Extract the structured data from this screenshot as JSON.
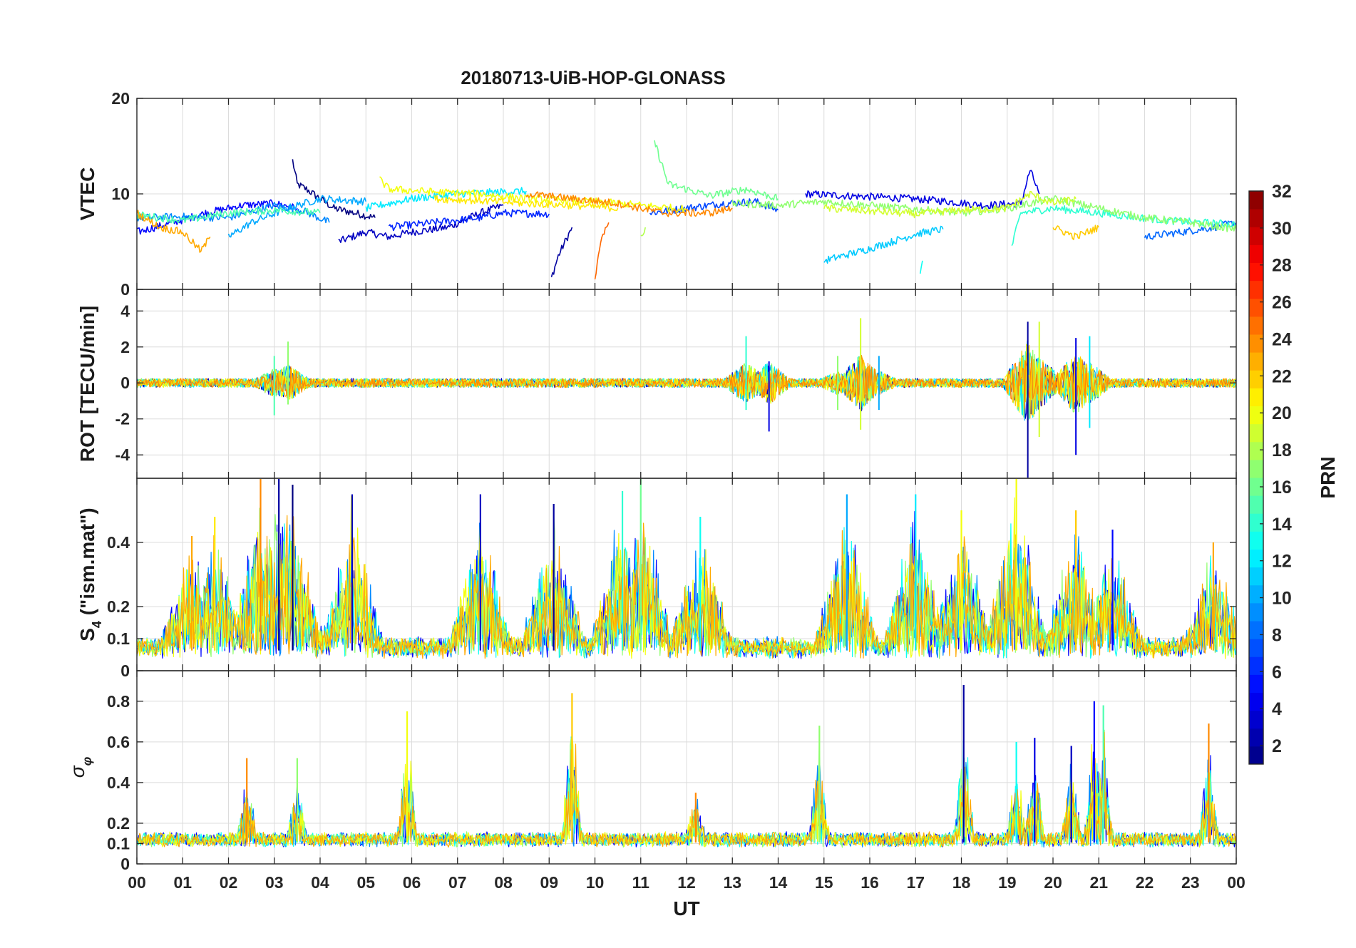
{
  "chart_data": {
    "type": "line",
    "title": "20180713-UiB-HOP-GLONASS",
    "xlabel": "UT",
    "xlim": [
      0,
      24
    ],
    "x_ticks": [
      0,
      1,
      2,
      3,
      4,
      5,
      6,
      7,
      8,
      9,
      10,
      11,
      12,
      13,
      14,
      15,
      16,
      17,
      18,
      19,
      20,
      21,
      22,
      23,
      24
    ],
    "x_tick_labels": [
      "00",
      "01",
      "02",
      "03",
      "04",
      "05",
      "06",
      "07",
      "08",
      "09",
      "10",
      "11",
      "12",
      "13",
      "14",
      "15",
      "16",
      "17",
      "18",
      "19",
      "20",
      "21",
      "22",
      "23",
      "00"
    ],
    "panels": [
      {
        "id": "vtec",
        "ylabel": "VTEC",
        "ylim": [
          0,
          20
        ],
        "yticks": [
          0,
          10,
          20
        ],
        "ytick_labels": [
          "0",
          "10",
          "20"
        ],
        "series": [
          {
            "prn": 1,
            "points": [
              [
                3.4,
                13.5
              ],
              [
                3.5,
                11
              ],
              [
                3.7,
                10.5
              ],
              [
                4.0,
                9.5
              ],
              [
                4.3,
                8.5
              ],
              [
                5.2,
                7.5
              ]
            ]
          },
          {
            "prn": 2,
            "points": [
              [
                9.05,
                1.2
              ],
              [
                9.2,
                3.5
              ],
              [
                9.5,
                6.5
              ]
            ]
          },
          {
            "prn": 3,
            "points": [
              [
                4.4,
                5.0
              ],
              [
                5.0,
                6.0
              ],
              [
                5.5,
                5.5
              ],
              [
                6.0,
                6.0
              ],
              [
                6.8,
                6.5
              ],
              [
                7.5,
                8.0
              ],
              [
                8.0,
                8.8
              ]
            ]
          },
          {
            "prn": 4,
            "points": [
              [
                14.6,
                10.0
              ],
              [
                15.5,
                9.8
              ],
              [
                16.5,
                9.6
              ],
              [
                17.5,
                9.3
              ],
              [
                18.5,
                8.8
              ],
              [
                19.3,
                9.0
              ],
              [
                19.5,
                12.5
              ],
              [
                19.7,
                10.0
              ]
            ]
          },
          {
            "prn": 5,
            "points": [
              [
                0,
                6.0
              ],
              [
                0.8,
                7.0
              ],
              [
                1.5,
                8.0
              ],
              [
                2.3,
                8.8
              ],
              [
                3.0,
                9.0
              ],
              [
                3.5,
                8.5
              ]
            ]
          },
          {
            "prn": 6,
            "points": [
              [
                5.5,
                6.5
              ],
              [
                6.5,
                7.0
              ],
              [
                7.5,
                7.5
              ],
              [
                8.0,
                8.0
              ],
              [
                9.0,
                7.9
              ]
            ]
          },
          {
            "prn": 7,
            "points": [
              [
                11.2,
                8.0
              ],
              [
                12.0,
                8.5
              ],
              [
                12.8,
                9.0
              ],
              [
                13.5,
                9.2
              ],
              [
                14.0,
                8.3
              ]
            ]
          },
          {
            "prn": 8,
            "points": [
              [
                22.0,
                5.5
              ],
              [
                22.8,
                6.0
              ],
              [
                23.5,
                6.5
              ],
              [
                24,
                7.0
              ]
            ]
          },
          {
            "prn": 9,
            "points": [
              [
                0,
                7.5
              ],
              [
                1.0,
                7.6
              ],
              [
                2.0,
                7.5
              ],
              [
                3.0,
                8.8
              ],
              [
                3.6,
                8.3
              ],
              [
                4.2,
                7.0
              ]
            ]
          },
          {
            "prn": 10,
            "points": [
              [
                2.0,
                5.5
              ],
              [
                2.5,
                7.0
              ],
              [
                3.3,
                8.5
              ],
              [
                4.0,
                9.5
              ],
              [
                5.0,
                9.2
              ]
            ]
          },
          {
            "prn": 11,
            "points": [
              [
                15.0,
                3.0
              ],
              [
                15.8,
                4.0
              ],
              [
                16.5,
                5.0
              ],
              [
                17.0,
                5.8
              ],
              [
                17.6,
                6.3
              ]
            ]
          },
          {
            "prn": 12,
            "points": [
              [
                5.0,
                8.5
              ],
              [
                6.0,
                9.5
              ],
              [
                7.0,
                10.0
              ],
              [
                8.5,
                10.3
              ]
            ]
          },
          {
            "prn": 13,
            "points": [
              [
                17.1,
                1.5
              ],
              [
                17.15,
                3.0
              ]
            ]
          },
          {
            "prn": 14,
            "points": [
              [
                19.1,
                4.5
              ],
              [
                19.3,
                8.0
              ],
              [
                20.0,
                8.5
              ],
              [
                21.0,
                8.0
              ],
              [
                22.5,
                7.2
              ],
              [
                24,
                6.8
              ]
            ]
          },
          {
            "prn": 15,
            "points": [
              [
                0,
                7.8
              ],
              [
                1.0,
                7.2
              ],
              [
                2.0,
                8.0
              ],
              [
                3.0,
                8.3
              ],
              [
                4.0,
                8.0
              ]
            ]
          },
          {
            "prn": 16,
            "points": [
              [
                11.3,
                15.5
              ],
              [
                11.6,
                11.0
              ],
              [
                12.0,
                10.5
              ],
              [
                12.5,
                9.8
              ],
              [
                13.3,
                10.5
              ],
              [
                14.0,
                9.5
              ]
            ]
          },
          {
            "prn": 17,
            "points": [
              [
                13.0,
                9.0
              ],
              [
                14.0,
                8.8
              ],
              [
                15.0,
                9.2
              ],
              [
                16.0,
                8.8
              ],
              [
                17.0,
                8.4
              ],
              [
                18.0,
                8.0
              ],
              [
                19.0,
                8.5
              ],
              [
                20.0,
                9.5
              ],
              [
                21.0,
                8.5
              ],
              [
                22.0,
                7.5
              ],
              [
                23.0,
                7.0
              ],
              [
                24,
                6.3
              ]
            ]
          },
          {
            "prn": 18,
            "points": [
              [
                11.0,
                5.5
              ],
              [
                11.1,
                6.5
              ]
            ]
          },
          {
            "prn": 19,
            "points": [
              [
                15.0,
                8.5
              ],
              [
                16.0,
                8.2
              ],
              [
                17.0,
                7.9
              ],
              [
                18.0,
                8.3
              ],
              [
                19.0,
                8.5
              ],
              [
                19.5,
                10.0
              ],
              [
                20.0,
                9.0
              ],
              [
                20.5,
                9.5
              ]
            ]
          },
          {
            "prn": 20,
            "points": [
              [
                5.3,
                11.5
              ],
              [
                5.5,
                10.5
              ],
              [
                6.5,
                10.2
              ],
              [
                7.5,
                10.0
              ],
              [
                8.5,
                9.5
              ],
              [
                10.0,
                9.2
              ],
              [
                11.0,
                8.8
              ],
              [
                12.0,
                8.4
              ]
            ]
          },
          {
            "prn": 21,
            "points": [
              [
                6.5,
                9.5
              ],
              [
                7.5,
                9.3
              ],
              [
                8.5,
                9.0
              ],
              [
                9.5,
                8.8
              ],
              [
                10.5,
                8.5
              ]
            ]
          },
          {
            "prn": 22,
            "points": [
              [
                20.0,
                6.5
              ],
              [
                20.5,
                5.5
              ],
              [
                21.0,
                6.5
              ]
            ]
          },
          {
            "prn": 23,
            "points": [
              [
                0,
                8.0
              ],
              [
                0.5,
                6.5
              ],
              [
                1.0,
                6.0
              ],
              [
                1.4,
                4.0
              ],
              [
                1.6,
                5.5
              ]
            ]
          },
          {
            "prn": 24,
            "points": [
              [
                8.5,
                10.0
              ],
              [
                9.5,
                9.5
              ],
              [
                10.5,
                9.0
              ],
              [
                11.5,
                8.0
              ],
              [
                12.5,
                8.0
              ],
              [
                13.0,
                8.5
              ]
            ]
          },
          {
            "prn": 25,
            "points": [
              [
                10.0,
                1.2
              ],
              [
                10.1,
                4.5
              ],
              [
                10.3,
                7.0
              ]
            ]
          }
        ]
      },
      {
        "id": "rot",
        "ylabel": "ROT [TECU/min]",
        "ylim": [
          -5.3,
          5.2
        ],
        "yticks": [
          -4,
          -2,
          0,
          2,
          4
        ],
        "ytick_labels": [
          "-4",
          "-2",
          "0",
          "2",
          "4"
        ],
        "events": [
          {
            "hour": 3.0,
            "max": 1.5,
            "min": -1.8,
            "prn": 15
          },
          {
            "hour": 3.3,
            "max": 2.3,
            "min": -1.2,
            "prn": 17
          },
          {
            "hour": 13.3,
            "max": 2.6,
            "min": -1.5,
            "prn": 14
          },
          {
            "hour": 13.8,
            "max": 1.2,
            "min": -2.7,
            "prn": 4
          },
          {
            "hour": 15.3,
            "max": 1.5,
            "min": -1.5,
            "prn": 17
          },
          {
            "hour": 15.8,
            "max": 3.6,
            "min": -2.6,
            "prn": 19
          },
          {
            "hour": 16.2,
            "max": 1.5,
            "min": -1.5,
            "prn": 10
          },
          {
            "hour": 19.45,
            "max": 3.4,
            "min": -5.3,
            "prn": 2
          },
          {
            "hour": 19.7,
            "max": 3.4,
            "min": -3.0,
            "prn": 19
          },
          {
            "hour": 20.5,
            "max": 2.5,
            "min": -4.0,
            "prn": 4
          },
          {
            "hour": 20.8,
            "max": 2.6,
            "min": -2.5,
            "prn": 12
          }
        ]
      },
      {
        "id": "s4",
        "ylabel": "S4 (\"ism.mat\")",
        "ylabel_main": "S",
        "ylabel_sub": "4",
        "ylabel_rest": " (\"ism.mat\")",
        "ylim": [
          0,
          0.6
        ],
        "yticks": [
          0,
          0.1,
          0.2,
          0.4
        ],
        "ytick_labels": [
          "0",
          "0.1",
          "0.2",
          "0.4"
        ],
        "peaks": [
          {
            "hour": 1.2,
            "value": 0.42,
            "prn": 23
          },
          {
            "hour": 1.7,
            "value": 0.48,
            "prn": 21
          },
          {
            "hour": 2.7,
            "value": 0.6,
            "prn": 24
          },
          {
            "hour": 3.1,
            "value": 0.6,
            "prn": 2
          },
          {
            "hour": 3.4,
            "value": 0.58,
            "prn": 1
          },
          {
            "hour": 4.7,
            "value": 0.55,
            "prn": 3
          },
          {
            "hour": 7.5,
            "value": 0.55,
            "prn": 3
          },
          {
            "hour": 9.1,
            "value": 0.52,
            "prn": 2
          },
          {
            "hour": 10.6,
            "value": 0.56,
            "prn": 14
          },
          {
            "hour": 11.0,
            "value": 0.6,
            "prn": 16
          },
          {
            "hour": 12.3,
            "value": 0.48,
            "prn": 13
          },
          {
            "hour": 15.5,
            "value": 0.55,
            "prn": 10
          },
          {
            "hour": 17.0,
            "value": 0.55,
            "prn": 12
          },
          {
            "hour": 18.0,
            "value": 0.5,
            "prn": 20
          },
          {
            "hour": 19.2,
            "value": 0.6,
            "prn": 20
          },
          {
            "hour": 20.5,
            "value": 0.5,
            "prn": 22
          },
          {
            "hour": 21.3,
            "value": 0.44,
            "prn": 5
          },
          {
            "hour": 23.5,
            "value": 0.4,
            "prn": 23
          }
        ]
      },
      {
        "id": "sigma",
        "ylabel": "σφ",
        "ylabel_main": "σ",
        "ylabel_sub": "φ",
        "ylim": [
          0,
          0.95
        ],
        "yticks": [
          0,
          0.1,
          0.2,
          0.4,
          0.6,
          0.8
        ],
        "ytick_labels": [
          "0",
          "0.1",
          "0.2",
          "0.4",
          "0.6",
          "0.8"
        ],
        "peaks": [
          {
            "hour": 2.4,
            "value": 0.52,
            "prn": 24
          },
          {
            "hour": 3.5,
            "value": 0.52,
            "prn": 17
          },
          {
            "hour": 5.9,
            "value": 0.75,
            "prn": 20
          },
          {
            "hour": 9.5,
            "value": 0.84,
            "prn": 22
          },
          {
            "hour": 12.2,
            "value": 0.35,
            "prn": 24
          },
          {
            "hour": 14.9,
            "value": 0.68,
            "prn": 17
          },
          {
            "hour": 18.05,
            "value": 0.88,
            "prn": 2
          },
          {
            "hour": 19.2,
            "value": 0.6,
            "prn": 13
          },
          {
            "hour": 19.6,
            "value": 0.62,
            "prn": 4
          },
          {
            "hour": 20.4,
            "value": 0.58,
            "prn": 3
          },
          {
            "hour": 20.9,
            "value": 0.8,
            "prn": 5
          },
          {
            "hour": 21.1,
            "value": 0.78,
            "prn": 15
          },
          {
            "hour": 23.4,
            "value": 0.69,
            "prn": 24
          }
        ]
      }
    ],
    "colorbar": {
      "label": "PRN",
      "range": [
        1,
        32
      ],
      "ticks": [
        2,
        4,
        6,
        8,
        10,
        12,
        14,
        16,
        18,
        20,
        22,
        24,
        26,
        28,
        30,
        32
      ],
      "tick_labels": [
        "2",
        "4",
        "6",
        "8",
        "10",
        "12",
        "14",
        "16",
        "18",
        "20",
        "22",
        "24",
        "26",
        "28",
        "30",
        "32"
      ],
      "colormap": "jet"
    }
  }
}
